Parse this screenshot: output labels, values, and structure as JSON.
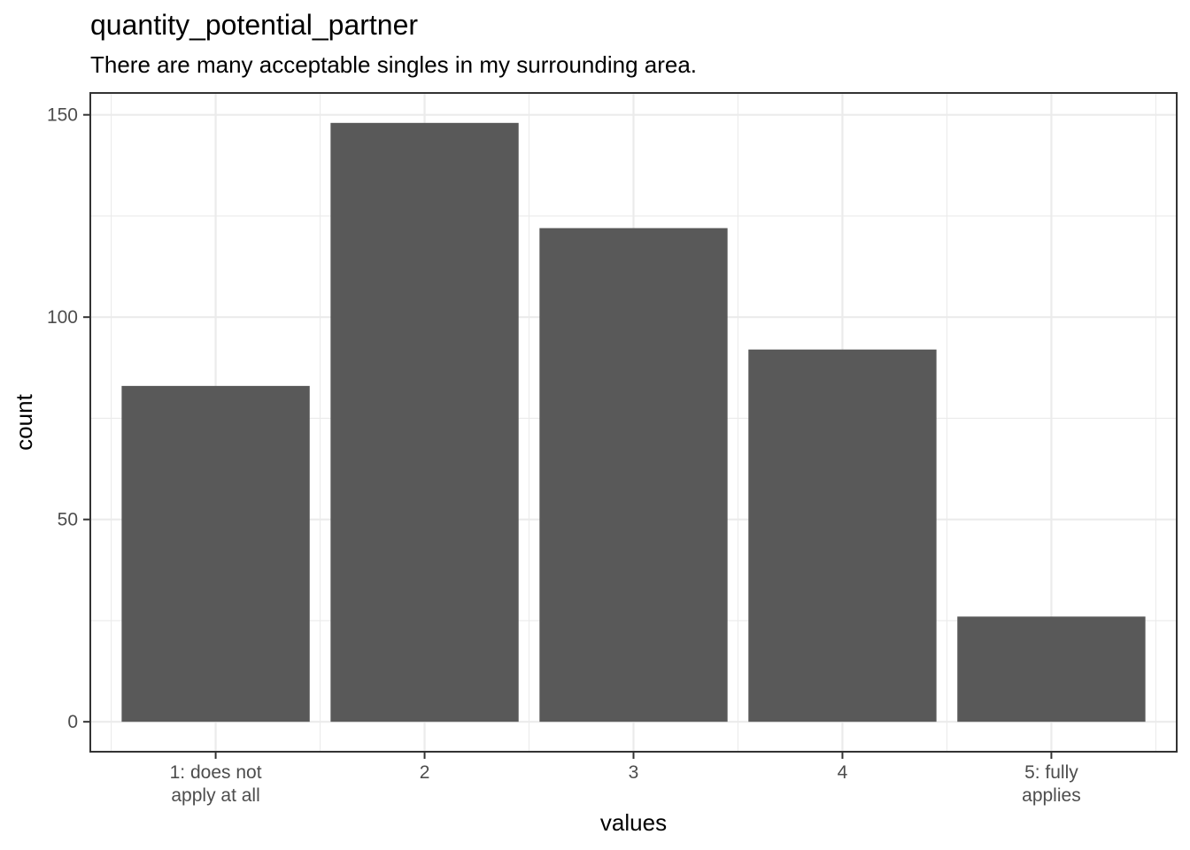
{
  "chart_data": {
    "type": "bar",
    "title": "quantity_potential_partner",
    "subtitle": "There are many acceptable singles in my surrounding area.",
    "xlabel": "values",
    "ylabel": "count",
    "categories": [
      [
        "1: does not",
        "apply at all"
      ],
      [
        "2"
      ],
      [
        "3"
      ],
      [
        "4"
      ],
      [
        "5: fully",
        "applies"
      ]
    ],
    "values": [
      83,
      148,
      122,
      92,
      26
    ],
    "ylim": [
      -7.4,
      155.4
    ],
    "yticks": [
      0,
      50,
      100,
      150
    ],
    "grid": true,
    "bar_color": "#595959",
    "grid_color": "#ebebeb",
    "panel_border_color": "#333333"
  }
}
